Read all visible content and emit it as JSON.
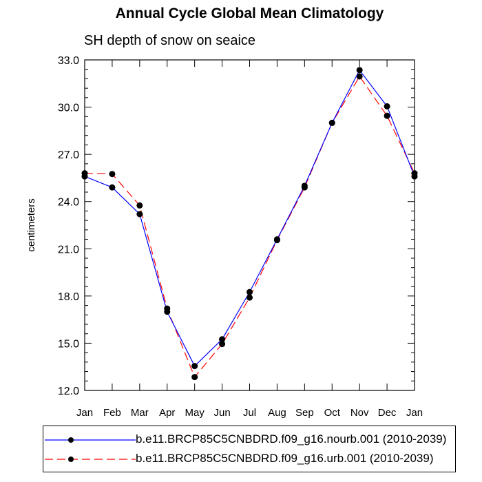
{
  "title": "Annual Cycle Global Mean Climatology",
  "subtitle": "SH depth of snow on seaice",
  "chart_data": {
    "type": "line",
    "title": "Annual Cycle Global Mean Climatology",
    "subtitle": "SH depth of snow on seaice",
    "xlabel": "",
    "ylabel": "centimeters",
    "categories": [
      "Jan",
      "Feb",
      "Mar",
      "Apr",
      "May",
      "Jun",
      "Jul",
      "Aug",
      "Sep",
      "Oct",
      "Nov",
      "Dec",
      "Jan"
    ],
    "ylim": [
      12.0,
      33.0
    ],
    "yticks": [
      "12.0",
      "15.0",
      "18.0",
      "21.0",
      "24.0",
      "27.0",
      "30.0",
      "33.0"
    ],
    "series": [
      {
        "name": "b.e11.BRCP85C5CNBDRD.f09_g16.nourb.001 (2010-2039)",
        "color": "#0000ff",
        "dash": "solid",
        "values": [
          25.6,
          24.9,
          23.2,
          17.0,
          13.55,
          15.25,
          18.25,
          21.6,
          25.0,
          29.0,
          32.35,
          30.05,
          25.6
        ]
      },
      {
        "name": "b.e11.BRCP85C5CNBDRD.f09_g16.urb.001 (2010-2039)",
        "color": "#ff0000",
        "dash": "dashed",
        "values": [
          25.8,
          25.75,
          23.75,
          17.2,
          12.85,
          14.95,
          17.9,
          21.55,
          24.9,
          29.0,
          31.95,
          29.45,
          25.8
        ]
      }
    ],
    "legend_position": "bottom",
    "grid": false
  }
}
